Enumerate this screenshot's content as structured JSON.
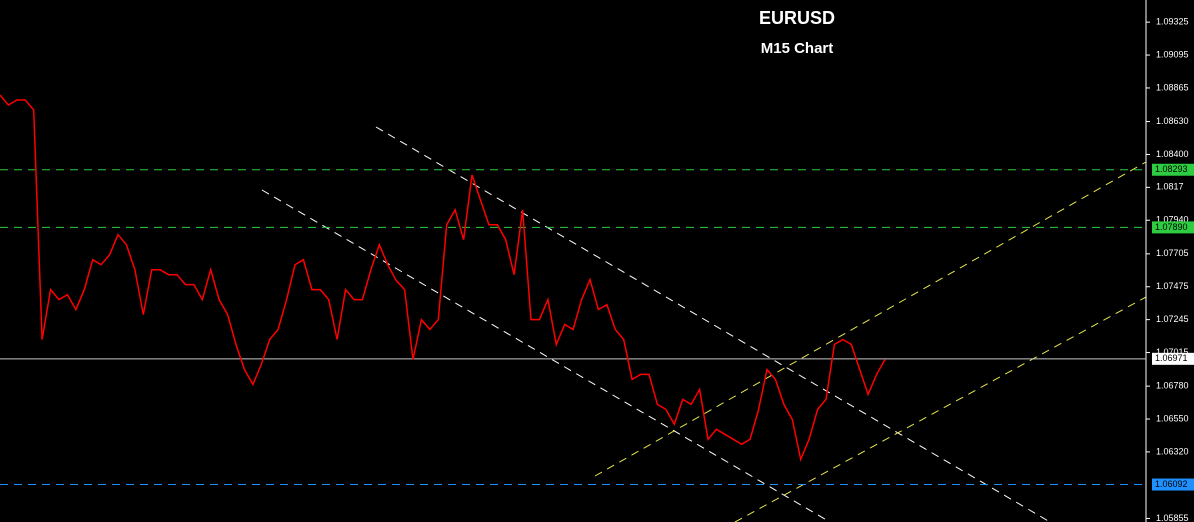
{
  "chart_data": {
    "type": "line",
    "title": "EURUSD",
    "subtitle": "M15 Chart",
    "series": [
      {
        "name": "EURUSD",
        "color": "#ff0000",
        "values": [
          1.08816,
          1.08746,
          1.08781,
          1.08781,
          1.08711,
          1.07106,
          1.07455,
          1.07385,
          1.0742,
          1.07315,
          1.07455,
          1.07664,
          1.07629,
          1.07699,
          1.07839,
          1.07769,
          1.07594,
          1.0728,
          1.07594,
          1.07594,
          1.07559,
          1.07559,
          1.0749,
          1.0749,
          1.07385,
          1.07594,
          1.07385,
          1.0728,
          1.07071,
          1.06896,
          1.06792,
          1.06931,
          1.07106,
          1.07176,
          1.07385,
          1.07629,
          1.07664,
          1.07455,
          1.07455,
          1.07385,
          1.07106,
          1.07455,
          1.07385,
          1.07385,
          1.07594,
          1.07769,
          1.07629,
          1.0752,
          1.07455,
          1.06966,
          1.07245,
          1.07176,
          1.07245,
          1.07909,
          1.08013,
          1.07804,
          1.08257,
          1.08083,
          1.07909,
          1.07909,
          1.07804,
          1.07559,
          1.08013,
          1.07245,
          1.07245,
          1.07385,
          1.07071,
          1.07211,
          1.07176,
          1.07385,
          1.07525,
          1.07315,
          1.0735,
          1.07176,
          1.07106,
          1.06827,
          1.06862,
          1.06862,
          1.06652,
          1.06617,
          1.06513,
          1.06687,
          1.06652,
          1.06757,
          1.06408,
          1.06478,
          1.06443,
          1.06408,
          1.06373,
          1.06408,
          1.06617,
          1.06896,
          1.06827,
          1.06652,
          1.06547,
          1.06268,
          1.06408,
          1.06617,
          1.06687,
          1.07071,
          1.07106,
          1.07071,
          1.06896,
          1.06722,
          1.06862,
          1.06966
        ]
      }
    ],
    "ylim": [
      1.0583,
      1.0948
    ],
    "yticks": [
      1.09325,
      1.09095,
      1.08865,
      {
        "value": 1.0863,
        "label": "1.08630"
      },
      {
        "value": 1.084,
        "label": "1.08400"
      },
      1.0817,
      {
        "value": 1.0794,
        "label": "1.07940"
      },
      1.07705,
      1.07475,
      1.07245,
      1.07015,
      {
        "value": 1.0678,
        "label": "1.06780"
      },
      {
        "value": 1.0655,
        "label": "1.06550"
      },
      {
        "value": 1.0632,
        "label": "1.06320"
      },
      1.05855
    ],
    "levels": [
      {
        "value": 1.08293,
        "color": "#2ecc40"
      },
      {
        "value": 1.0789,
        "label": "1.07890",
        "color": "#2ecc40"
      },
      {
        "value": 1.06971,
        "color": "#c8c8c8"
      },
      {
        "value": 1.06092,
        "color": "#1e90ff"
      }
    ]
  }
}
